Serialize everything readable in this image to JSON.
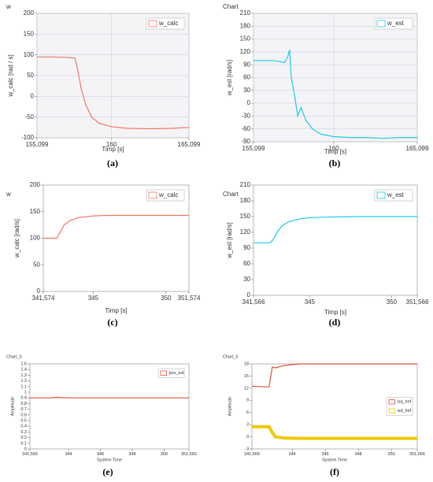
{
  "chart_data": [
    {
      "type": "line",
      "title": "w",
      "caption": "(a)",
      "xlabel": "Timp [s]",
      "ylabel": "w_calc [rad / s]",
      "xlim": [
        155.099,
        165.099
      ],
      "xticks": [
        {
          "value": 155.099,
          "label": "155,099"
        },
        160,
        {
          "value": 165.099,
          "label": "165,099"
        }
      ],
      "ylim": [
        -100,
        200
      ],
      "yticks": [
        -100,
        -50,
        0,
        50,
        100,
        150,
        200
      ],
      "grid": true,
      "legend": "upper right",
      "x": [
        155.099,
        156,
        157,
        157.6,
        157.8,
        158,
        158.3,
        158.7,
        159.2,
        160,
        161,
        162,
        163,
        164,
        165.099
      ],
      "series": [
        {
          "name": "w_calc",
          "color": "#f07860",
          "values": [
            95,
            95,
            94,
            92,
            60,
            20,
            -20,
            -50,
            -65,
            -73,
            -77,
            -78,
            -78,
            -77,
            -75
          ]
        }
      ]
    },
    {
      "type": "line",
      "title": "Chart",
      "caption": "(b)",
      "xlabel": "Timp [s]",
      "ylabel": "w_est [rad/s]",
      "xlim": [
        155.099,
        165.099
      ],
      "xticks": [
        {
          "value": 155.099,
          "label": "155,099"
        },
        160,
        {
          "value": 165.099,
          "label": "165,099"
        }
      ],
      "ylim": [
        -90,
        210
      ],
      "yticks": [
        -90,
        -60,
        -30,
        0,
        30,
        60,
        90,
        120,
        150,
        180,
        210
      ],
      "grid": true,
      "legend": "upper right",
      "x": [
        155.099,
        156,
        156.5,
        157,
        157.2,
        157.3,
        157.4,
        157.6,
        157.8,
        158,
        158.3,
        158.7,
        159.2,
        160,
        161,
        162,
        163,
        164,
        165.099
      ],
      "series": [
        {
          "name": "w_est",
          "color": "#1ec8e8",
          "values": [
            100,
            100,
            99,
            95,
            110,
            125,
            60,
            20,
            -30,
            -10,
            -40,
            -60,
            -72,
            -78,
            -80,
            -80,
            -82,
            -80,
            -80
          ]
        }
      ]
    },
    {
      "type": "line",
      "title": "w",
      "caption": "(c)",
      "xlabel": "Timp [s]",
      "ylabel": "w_calc [rad/s]",
      "xlim": [
        341.574,
        351.574
      ],
      "xticks": [
        {
          "value": 341.574,
          "label": "341,574"
        },
        345,
        350,
        {
          "value": 351.574,
          "label": "351,574"
        }
      ],
      "ylim": [
        0,
        200
      ],
      "yticks": [
        0,
        50,
        100,
        150,
        200
      ],
      "grid": false,
      "legend": "upper right",
      "x": [
        341.574,
        342.5,
        342.8,
        343,
        343.4,
        344,
        345,
        346,
        348,
        350,
        351.574
      ],
      "series": [
        {
          "name": "w_calc",
          "color": "#f07860",
          "values": [
            100,
            100,
            115,
            125,
            133,
            139,
            142,
            143,
            143,
            143,
            143
          ]
        }
      ]
    },
    {
      "type": "line",
      "title": "Chart",
      "caption": "(d)",
      "xlabel": "Timp [s]",
      "ylabel": "w_est [rad/s]",
      "xlim": [
        341.566,
        351.566
      ],
      "xticks": [
        {
          "value": 341.566,
          "label": "341,566"
        },
        345,
        350,
        {
          "value": 351.566,
          "label": "351,566"
        }
      ],
      "ylim": [
        0,
        210
      ],
      "yticks": [
        0,
        30,
        60,
        90,
        120,
        150,
        180,
        210
      ],
      "grid": false,
      "legend": "upper right",
      "x": [
        341.566,
        342.6,
        342.8,
        343,
        343.3,
        343.7,
        344.3,
        345,
        346,
        348,
        350,
        351.566
      ],
      "series": [
        {
          "name": "w_est",
          "color": "#1ec8e8",
          "values": [
            100,
            100,
            108,
            120,
            132,
            140,
            145,
            148,
            149,
            150,
            150,
            150
          ]
        }
      ]
    },
    {
      "type": "line",
      "title": "Chart_3",
      "caption": "(e)",
      "xlabel": "System Time",
      "ylabel": "Amplitude",
      "xlim": [
        341.566,
        351.566
      ],
      "xticks": [
        {
          "value": 341.566,
          "label": "341,566"
        },
        344,
        346,
        348,
        350,
        {
          "value": 351.566,
          "label": "351,566"
        }
      ],
      "ylim": [
        0,
        1.5
      ],
      "yticks": [
        0,
        0.1,
        0.2,
        0.3,
        0.4,
        0.5,
        0.6,
        0.7,
        0.8,
        0.9,
        1,
        1.1,
        1.2,
        1.3,
        1.4,
        1.5
      ],
      "grid": false,
      "legend": "upper right",
      "x": [
        341.566,
        342.9,
        343.2,
        344,
        351.566
      ],
      "series": [
        {
          "name": "pos_est",
          "color": "#e0503a",
          "values": [
            0.9,
            0.9,
            0.91,
            0.9,
            0.9
          ]
        }
      ]
    },
    {
      "type": "line",
      "title": "Chart_5",
      "caption": "(f)",
      "xlabel": "System Time",
      "ylabel": "Amplitude",
      "xlim": [
        341.566,
        351.566
      ],
      "xticks": [
        {
          "value": 341.566,
          "label": "341,566"
        },
        344,
        346,
        348,
        350,
        {
          "value": 351.566,
          "label": "351,566"
        }
      ],
      "ylim": [
        -3,
        18
      ],
      "yticks": [
        -3,
        0,
        3,
        6,
        9,
        12,
        15,
        18
      ],
      "grid": false,
      "legend": "right",
      "x": [
        341.566,
        342,
        342.6,
        342.8,
        343,
        343.5,
        344.5,
        348,
        351.566
      ],
      "series": [
        {
          "name": "isq_lref",
          "color": "#e0503a",
          "values": [
            12.5,
            12.4,
            12.3,
            17.2,
            17.0,
            17.6,
            18,
            18,
            18
          ]
        },
        {
          "name": "isd_lref",
          "color": "#f0c800",
          "values": [
            2.5,
            2.5,
            2.5,
            1,
            0,
            -0.3,
            -0.4,
            -0.4,
            -0.4
          ]
        }
      ]
    }
  ]
}
